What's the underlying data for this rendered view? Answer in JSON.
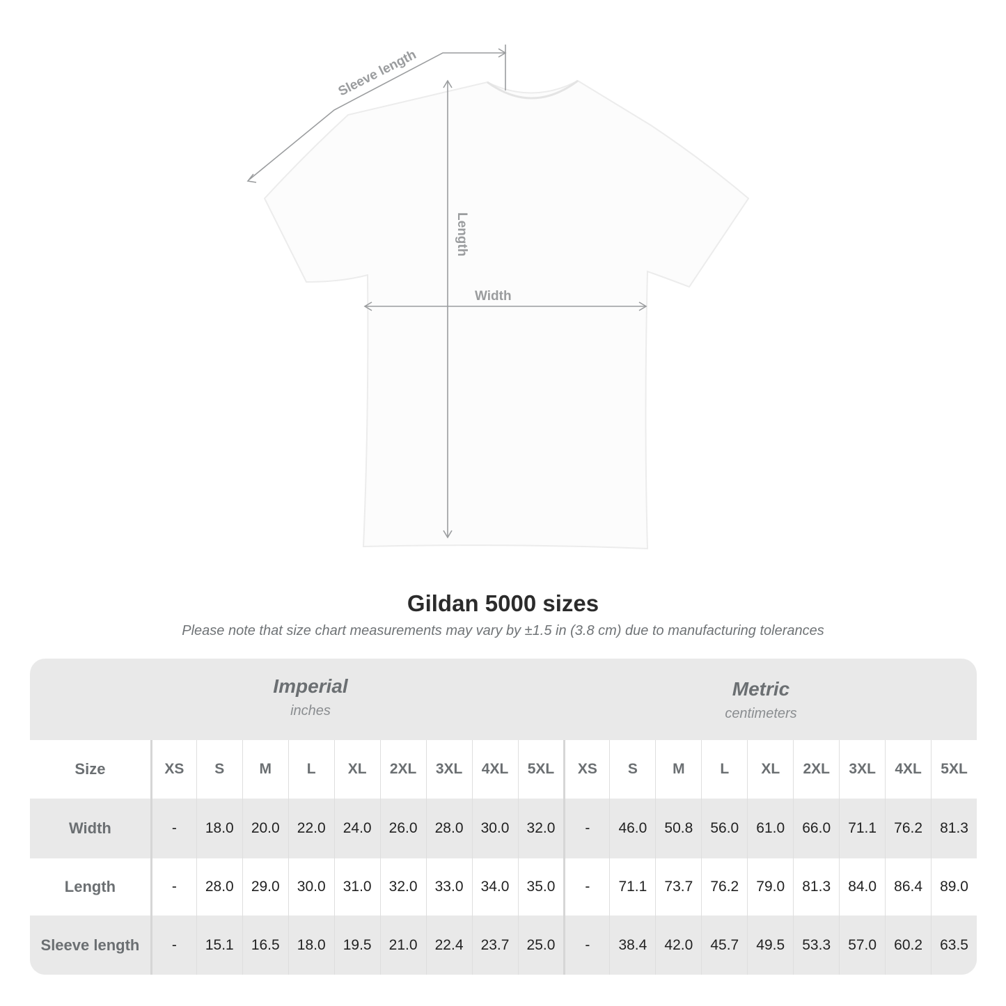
{
  "diagram": {
    "labels": {
      "sleeve": "Sleeve length",
      "length": "Length",
      "width": "Width"
    }
  },
  "title": "Gildan 5000 sizes",
  "note": "Please note that size chart measurements may vary by ±1.5 in (3.8 cm) due to manufacturing tolerances",
  "table": {
    "imperial": {
      "name": "Imperial",
      "unit": "inches"
    },
    "metric": {
      "name": "Metric",
      "unit": "centimeters"
    },
    "size_label": "Size",
    "sizes": [
      "XS",
      "S",
      "M",
      "L",
      "XL",
      "2XL",
      "3XL",
      "4XL",
      "5XL"
    ],
    "rows": [
      {
        "label": "Width",
        "imperial": [
          "-",
          "18.0",
          "20.0",
          "22.0",
          "24.0",
          "26.0",
          "28.0",
          "30.0",
          "32.0"
        ],
        "metric": [
          "-",
          "46.0",
          "50.8",
          "56.0",
          "61.0",
          "66.0",
          "71.1",
          "76.2",
          "81.3"
        ]
      },
      {
        "label": "Length",
        "imperial": [
          "-",
          "28.0",
          "29.0",
          "30.0",
          "31.0",
          "32.0",
          "33.0",
          "34.0",
          "35.0"
        ],
        "metric": [
          "-",
          "71.1",
          "73.7",
          "76.2",
          "79.0",
          "81.3",
          "84.0",
          "86.4",
          "89.0"
        ]
      },
      {
        "label": "Sleeve length",
        "imperial": [
          "-",
          "15.1",
          "16.5",
          "18.0",
          "19.5",
          "21.0",
          "22.4",
          "23.7",
          "25.0"
        ],
        "metric": [
          "-",
          "38.4",
          "42.0",
          "45.7",
          "49.5",
          "53.3",
          "57.0",
          "60.2",
          "63.5"
        ]
      }
    ]
  }
}
